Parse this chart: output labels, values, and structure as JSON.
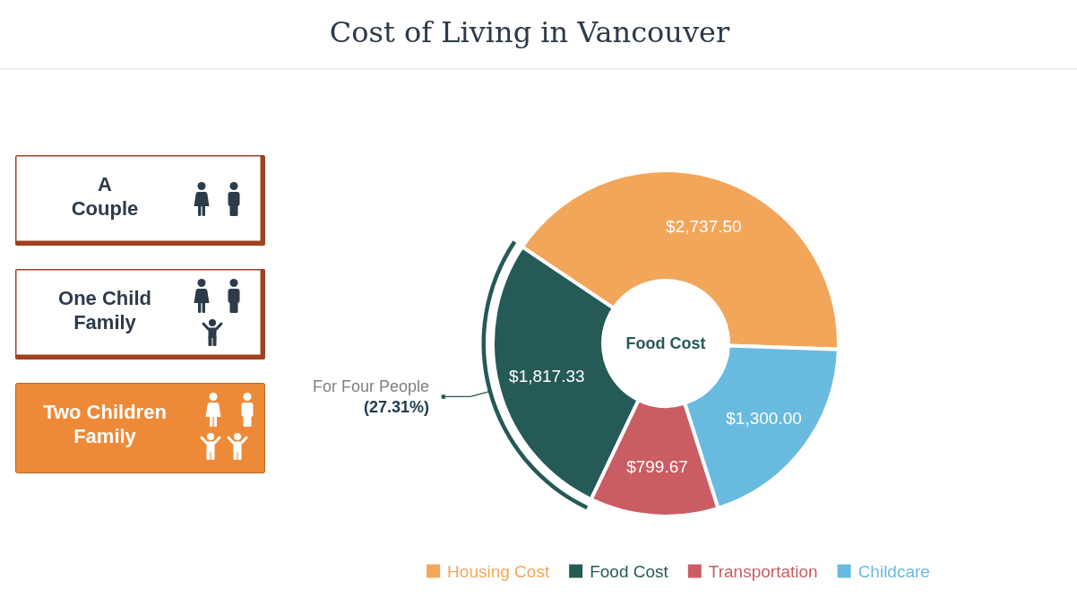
{
  "chart_data": [
    {
      "type": "other",
      "categories": [
        "A Couple",
        "One Child Family",
        "Two Children Family"
      ],
      "colors": [
        "#ffffff",
        "#ffffff",
        "#ee8a37"
      ]
    },
    {
      "type": "donut",
      "title": "Cost of Living in Vancouver",
      "categories": [
        "Housing Cost",
        "Food Cost",
        "Transportation",
        "Childcare"
      ],
      "values": [
        2737.5,
        1817.33,
        799.67,
        1300
      ],
      "colors": [
        "#f2a65a",
        "#255a56",
        "#c95d63",
        "#68bbdf"
      ],
      "value_labels": [
        "$2,737.50",
        "$1,817.33",
        "$799.67",
        "$1,300.00"
      ],
      "legend": "bottom",
      "annotations": [
        {
          "text": "Food Cost",
          "x": "Food Cost"
        },
        {
          "text": "For Four People",
          "x": "Food Cost"
        },
        {
          "text": "(27.31%)",
          "x": "Food Cost"
        }
      ]
    }
  ]
}
